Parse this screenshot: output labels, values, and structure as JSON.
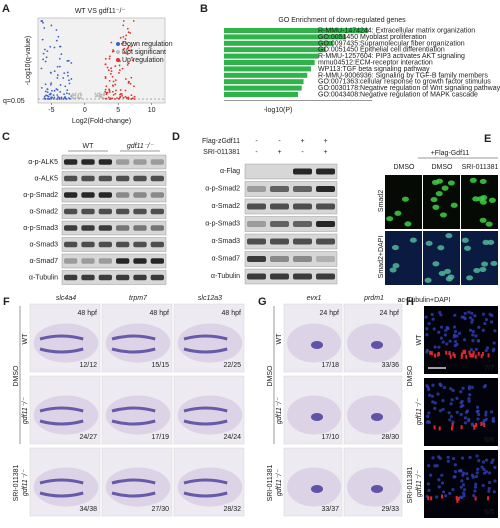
{
  "panel_a": {
    "letter": "A",
    "title": "WT VS gdf11⁻/⁻",
    "ylabel": "-Log10(q-value)",
    "xlabel": "Log2(Fold-change)",
    "threshold_label": "q=0.05",
    "xlim": [
      -7,
      12
    ],
    "xticks": [
      -5,
      0,
      5,
      10
    ],
    "legend": [
      {
        "label": "Down regulation",
        "color": "#3a5fcd"
      },
      {
        "label": "Not significant",
        "color": "#bdbdbd"
      },
      {
        "label": "Up regulation",
        "color": "#e0302c"
      }
    ]
  },
  "chart_data": {
    "type": "bar",
    "letter": "B",
    "title": "GO Enrichment of down-regulated genes",
    "xlabel": "-log10(P)",
    "color": "#2fb34a",
    "categories": [
      "R-MMU-1474244: Extracellular matrix organization",
      "GO:0051450 Myoblast proliferation",
      "GO:0097435:Supramolecular fiber organization",
      "GO:0051450 Epithelial cell differentiation",
      "R-MMU-1257604: PIP3 activates AKT signaling",
      "mmu04512:ECM-receptor interaction",
      "WP113:TGF beta signaling pathway",
      "R-MMU-9006936: Signaling by TGF-B family members",
      "GO:0071363:cellular response to growth factor stimulus",
      "GO:0030178:Negative regulation of Wnt signaling pathway",
      "GO:0043408:Negative regulation of MAPK cascade"
    ],
    "values": [
      7.8,
      6.6,
      5.9,
      5.5,
      5.1,
      4.9,
      4.7,
      4.5,
      4.3,
      4.2,
      4.0
    ],
    "label_colors": [
      "#222",
      "#222",
      "#222",
      "#222",
      "#e0302c",
      "#222",
      "#e0302c",
      "#e0302c",
      "#222",
      "#222",
      "#e0302c"
    ],
    "xlim": [
      0,
      8
    ]
  },
  "panel_c": {
    "letter": "C",
    "lanes": [
      "WT",
      "gdf11⁻/⁻"
    ],
    "blots": [
      "α-p-ALK5",
      "α-ALK5",
      "α-p-Smad2",
      "α-Smad2",
      "α-p-Smad3",
      "α-Smad3",
      "α-Smad7",
      "α-Tubulin"
    ]
  },
  "panel_d": {
    "letter": "D",
    "treatments": [
      {
        "name": "Flag-zGdf11",
        "signs": [
          "-",
          "-",
          "+",
          "+"
        ]
      },
      {
        "name": "SRI-011381",
        "signs": [
          "-",
          "+",
          "-",
          "+"
        ]
      }
    ],
    "blots": [
      "α-Flag",
      "α-p-Smad2",
      "α-Smad2",
      "α-p-Smad3",
      "α-Smad3",
      "α-Smad7",
      "α-Tubulin"
    ]
  },
  "panel_e": {
    "letter": "E",
    "header": "+Flag-Gdf11",
    "columns": [
      "DMSO",
      "DMSO",
      "SRI-011381"
    ],
    "rows": [
      "Smad2",
      "Smad2+DAPI"
    ]
  },
  "panel_f": {
    "letter": "F",
    "genes": [
      "slc4a4",
      "trpm7",
      "slc12a3"
    ],
    "stage": "48 hpf",
    "groups": [
      "DMSO",
      "SRI-011381"
    ],
    "rows": [
      "WT",
      "gdf11⁻/⁻",
      "gdf11⁻/⁻"
    ],
    "counts": [
      [
        "12/12",
        "15/15",
        "22/25"
      ],
      [
        "24/27",
        "17/19",
        "24/24"
      ],
      [
        "34/38",
        "27/30",
        "28/32"
      ]
    ]
  },
  "panel_g": {
    "letter": "G",
    "genes": [
      "evx1",
      "prdm1"
    ],
    "stage": "24 hpf",
    "groups": [
      "DMSO",
      "SRI-011381"
    ],
    "rows": [
      "WT",
      "gdf11⁻/⁻",
      "gdf11⁻/⁻"
    ],
    "counts": [
      [
        "17/18",
        "33/36"
      ],
      [
        "17/10",
        "28/30"
      ],
      [
        "33/37",
        "29/33"
      ]
    ]
  },
  "panel_h": {
    "letter": "H",
    "title_parts": [
      "ac-Tubulin",
      "+DAPI"
    ],
    "groups": [
      "DMSO",
      "SRI-011381"
    ],
    "rows": [
      "WT",
      "gdf11⁻/⁻",
      "gdf11⁻/⁻"
    ],
    "counts": [
      "7/7",
      "5/6",
      "5/5"
    ]
  }
}
